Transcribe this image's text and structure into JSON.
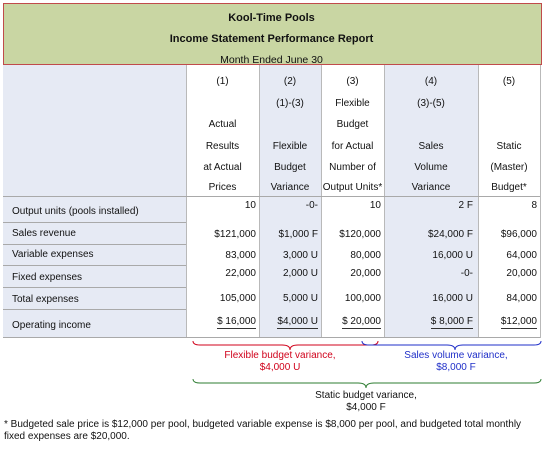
{
  "company": "Kool-Time Pools",
  "report_title": "Income Statement Performance Report",
  "period": "Month Ended June 30",
  "columns": [
    {
      "num": "(1)",
      "formula": "",
      "heading": [
        "Actual",
        "Results",
        "at Actual",
        "Prices"
      ]
    },
    {
      "num": "(2)",
      "formula": "(1)-(3)",
      "heading": [
        "",
        "Flexible",
        "Budget",
        "Variance"
      ]
    },
    {
      "num": "(3)",
      "formula": "Flexible",
      "heading": [
        "Budget",
        "for Actual",
        "Number of",
        "Output Units*"
      ]
    },
    {
      "num": "(4)",
      "formula": "(3)-(5)",
      "heading": [
        "",
        "Sales",
        "Volume",
        "Variance"
      ]
    },
    {
      "num": "(5)",
      "formula": "",
      "heading": [
        "",
        "Static",
        "(Master)",
        "Budget*"
      ]
    }
  ],
  "rows": [
    {
      "label": "Output units (pools installed)",
      "values": [
        "10",
        "-0-",
        "10",
        "2 F",
        "8"
      ]
    },
    {
      "label": "Sales revenue",
      "values": [
        "$121,000",
        "$1,000 F",
        "$120,000",
        "$24,000 F",
        "$96,000"
      ]
    },
    {
      "label": "Variable expenses",
      "values": [
        "83,000",
        "3,000 U",
        "80,000",
        "16,000 U",
        "64,000"
      ]
    },
    {
      "label": "Fixed expenses",
      "values": [
        "22,000",
        "2,000 U",
        "20,000",
        "-0-",
        "20,000"
      ]
    },
    {
      "label": "Total expenses",
      "values": [
        "105,000",
        "5,000 U",
        "100,000",
        "16,000 U",
        "84,000"
      ]
    },
    {
      "label": "Operating income",
      "values": [
        "$ 16,000",
        "$4,000 U",
        "$ 20,000",
        "$ 8,000 F",
        "$12,000"
      ]
    }
  ],
  "notes": {
    "flexible_variance": [
      "Flexible budget variance,",
      "$4,000 U"
    ],
    "sales_volume_variance": [
      "Sales volume variance,",
      "$8,000 F"
    ],
    "static_variance": [
      "Static budget variance,",
      "$4,000 F"
    ]
  },
  "footnote": "* Budgeted sale price is $12,000 per pool, budgeted variable expense is $8,000 per pool, and budgeted total monthly fixed expenses are $20,000.",
  "colors": {
    "title_bg": "#c9d6a3",
    "title_border": "#c04b4b",
    "column_bg": "#e6eaf4",
    "flexible_note": "#d0021b",
    "sales_volume_note": "#1f2fc8",
    "static_note": "#2e7d32"
  }
}
